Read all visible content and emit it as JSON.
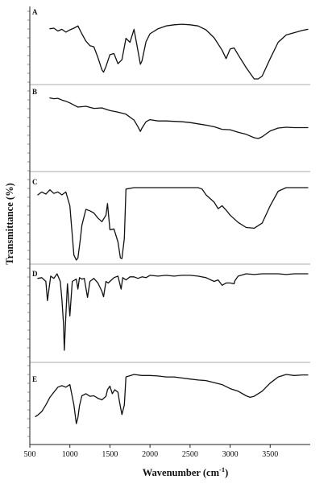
{
  "chart_data": {
    "type": "line",
    "title": "",
    "xlabel_base": "Wavenumber (cm",
    "xlabel_sup": "-1",
    "xlabel_end": ")",
    "ylabel": "Transmittance (%)",
    "xlim": [
      500,
      4000
    ],
    "xticks": [
      500,
      1000,
      1500,
      2000,
      2500,
      3000,
      3500
    ],
    "panel_order": [
      "A",
      "B",
      "C",
      "D",
      "E"
    ],
    "panels": {
      "A": {
        "label": "A",
        "points": [
          [
            750,
            0.11
          ],
          [
            800,
            0.1
          ],
          [
            850,
            0.15
          ],
          [
            900,
            0.12
          ],
          [
            950,
            0.17
          ],
          [
            1000,
            0.13
          ],
          [
            1050,
            0.1
          ],
          [
            1100,
            0.06
          ],
          [
            1150,
            0.2
          ],
          [
            1200,
            0.33
          ],
          [
            1250,
            0.41
          ],
          [
            1300,
            0.43
          ],
          [
            1350,
            0.62
          ],
          [
            1400,
            0.84
          ],
          [
            1420,
            0.88
          ],
          [
            1450,
            0.78
          ],
          [
            1500,
            0.57
          ],
          [
            1550,
            0.55
          ],
          [
            1600,
            0.73
          ],
          [
            1650,
            0.66
          ],
          [
            1700,
            0.28
          ],
          [
            1750,
            0.35
          ],
          [
            1800,
            0.12
          ],
          [
            1850,
            0.5
          ],
          [
            1880,
            0.74
          ],
          [
            1900,
            0.68
          ],
          [
            1950,
            0.34
          ],
          [
            2000,
            0.2
          ],
          [
            2100,
            0.11
          ],
          [
            2200,
            0.06
          ],
          [
            2300,
            0.04
          ],
          [
            2400,
            0.03
          ],
          [
            2500,
            0.04
          ],
          [
            2600,
            0.06
          ],
          [
            2700,
            0.13
          ],
          [
            2800,
            0.27
          ],
          [
            2900,
            0.49
          ],
          [
            2950,
            0.64
          ],
          [
            3000,
            0.47
          ],
          [
            3050,
            0.45
          ],
          [
            3100,
            0.57
          ],
          [
            3200,
            0.8
          ],
          [
            3300,
            1.0
          ],
          [
            3350,
            1.0
          ],
          [
            3400,
            0.95
          ],
          [
            3500,
            0.64
          ],
          [
            3600,
            0.35
          ],
          [
            3700,
            0.22
          ],
          [
            3800,
            0.18
          ],
          [
            3900,
            0.14
          ],
          [
            3970,
            0.12
          ]
        ]
      },
      "B": {
        "label": "B",
        "points": [
          [
            750,
            0.03
          ],
          [
            800,
            0.05
          ],
          [
            850,
            0.04
          ],
          [
            900,
            0.08
          ],
          [
            950,
            0.11
          ],
          [
            1000,
            0.15
          ],
          [
            1050,
            0.2
          ],
          [
            1100,
            0.25
          ],
          [
            1200,
            0.23
          ],
          [
            1300,
            0.28
          ],
          [
            1400,
            0.27
          ],
          [
            1500,
            0.33
          ],
          [
            1600,
            0.37
          ],
          [
            1700,
            0.42
          ],
          [
            1800,
            0.56
          ],
          [
            1850,
            0.72
          ],
          [
            1880,
            0.83
          ],
          [
            1900,
            0.75
          ],
          [
            1950,
            0.6
          ],
          [
            2000,
            0.55
          ],
          [
            2100,
            0.58
          ],
          [
            2200,
            0.58
          ],
          [
            2300,
            0.59
          ],
          [
            2400,
            0.6
          ],
          [
            2500,
            0.62
          ],
          [
            2600,
            0.65
          ],
          [
            2700,
            0.68
          ],
          [
            2800,
            0.72
          ],
          [
            2900,
            0.78
          ],
          [
            3000,
            0.79
          ],
          [
            3100,
            0.85
          ],
          [
            3200,
            0.9
          ],
          [
            3300,
            0.98
          ],
          [
            3350,
            1.0
          ],
          [
            3400,
            0.96
          ],
          [
            3500,
            0.82
          ],
          [
            3600,
            0.75
          ],
          [
            3700,
            0.73
          ],
          [
            3800,
            0.74
          ],
          [
            3900,
            0.74
          ],
          [
            3970,
            0.74
          ]
        ]
      },
      "C": {
        "label": "C",
        "points": [
          [
            600,
            0.1
          ],
          [
            650,
            0.06
          ],
          [
            700,
            0.09
          ],
          [
            750,
            0.03
          ],
          [
            800,
            0.08
          ],
          [
            850,
            0.06
          ],
          [
            900,
            0.1
          ],
          [
            950,
            0.06
          ],
          [
            1000,
            0.25
          ],
          [
            1050,
            0.93
          ],
          [
            1080,
            1.0
          ],
          [
            1100,
            0.97
          ],
          [
            1130,
            0.72
          ],
          [
            1150,
            0.52
          ],
          [
            1200,
            0.3
          ],
          [
            1250,
            0.32
          ],
          [
            1300,
            0.35
          ],
          [
            1350,
            0.42
          ],
          [
            1400,
            0.47
          ],
          [
            1450,
            0.38
          ],
          [
            1470,
            0.22
          ],
          [
            1500,
            0.58
          ],
          [
            1550,
            0.57
          ],
          [
            1600,
            0.75
          ],
          [
            1630,
            0.97
          ],
          [
            1650,
            0.98
          ],
          [
            1680,
            0.7
          ],
          [
            1700,
            0.02
          ],
          [
            1800,
            0.0
          ],
          [
            1900,
            0.0
          ],
          [
            2000,
            0.0
          ],
          [
            2100,
            0.0
          ],
          [
            2200,
            0.0
          ],
          [
            2300,
            0.0
          ],
          [
            2400,
            0.0
          ],
          [
            2500,
            0.0
          ],
          [
            2600,
            0.0
          ],
          [
            2650,
            0.02
          ],
          [
            2700,
            0.1
          ],
          [
            2800,
            0.2
          ],
          [
            2850,
            0.29
          ],
          [
            2900,
            0.25
          ],
          [
            2950,
            0.31
          ],
          [
            3000,
            0.38
          ],
          [
            3100,
            0.48
          ],
          [
            3200,
            0.55
          ],
          [
            3300,
            0.56
          ],
          [
            3400,
            0.49
          ],
          [
            3500,
            0.25
          ],
          [
            3600,
            0.05
          ],
          [
            3700,
            0.0
          ],
          [
            3800,
            0.0
          ],
          [
            3970,
            0.0
          ]
        ]
      },
      "D": {
        "label": "D",
        "points": [
          [
            600,
            0.06
          ],
          [
            650,
            0.05
          ],
          [
            700,
            0.1
          ],
          [
            720,
            0.35
          ],
          [
            760,
            0.03
          ],
          [
            800,
            0.06
          ],
          [
            840,
            0.0
          ],
          [
            880,
            0.1
          ],
          [
            900,
            0.33
          ],
          [
            920,
            0.65
          ],
          [
            930,
            1.0
          ],
          [
            950,
            0.55
          ],
          [
            970,
            0.13
          ],
          [
            1000,
            0.55
          ],
          [
            1030,
            0.1
          ],
          [
            1080,
            0.07
          ],
          [
            1100,
            0.2
          ],
          [
            1120,
            0.05
          ],
          [
            1150,
            0.07
          ],
          [
            1180,
            0.06
          ],
          [
            1220,
            0.31
          ],
          [
            1250,
            0.1
          ],
          [
            1300,
            0.06
          ],
          [
            1350,
            0.12
          ],
          [
            1400,
            0.23
          ],
          [
            1420,
            0.3
          ],
          [
            1450,
            0.1
          ],
          [
            1480,
            0.12
          ],
          [
            1520,
            0.08
          ],
          [
            1550,
            0.05
          ],
          [
            1600,
            0.03
          ],
          [
            1640,
            0.2
          ],
          [
            1660,
            0.05
          ],
          [
            1700,
            0.08
          ],
          [
            1750,
            0.04
          ],
          [
            1800,
            0.04
          ],
          [
            1850,
            0.06
          ],
          [
            1900,
            0.04
          ],
          [
            1950,
            0.05
          ],
          [
            2000,
            0.02
          ],
          [
            2100,
            0.03
          ],
          [
            2200,
            0.02
          ],
          [
            2300,
            0.03
          ],
          [
            2400,
            0.02
          ],
          [
            2500,
            0.02
          ],
          [
            2600,
            0.03
          ],
          [
            2700,
            0.05
          ],
          [
            2800,
            0.1
          ],
          [
            2850,
            0.08
          ],
          [
            2900,
            0.15
          ],
          [
            2950,
            0.12
          ],
          [
            3000,
            0.12
          ],
          [
            3050,
            0.13
          ],
          [
            3060,
            0.09
          ],
          [
            3100,
            0.03
          ],
          [
            3200,
            0.0
          ],
          [
            3300,
            0.01
          ],
          [
            3400,
            0.0
          ],
          [
            3500,
            0.0
          ],
          [
            3600,
            0.0
          ],
          [
            3700,
            0.01
          ],
          [
            3800,
            0.0
          ],
          [
            3970,
            0.0
          ]
        ]
      },
      "E": {
        "label": "E",
        "points": [
          [
            570,
            0.83
          ],
          [
            600,
            0.8
          ],
          [
            650,
            0.73
          ],
          [
            700,
            0.6
          ],
          [
            750,
            0.45
          ],
          [
            800,
            0.35
          ],
          [
            850,
            0.25
          ],
          [
            900,
            0.22
          ],
          [
            950,
            0.25
          ],
          [
            1000,
            0.2
          ],
          [
            1050,
            0.6
          ],
          [
            1080,
            0.97
          ],
          [
            1100,
            0.85
          ],
          [
            1120,
            0.62
          ],
          [
            1150,
            0.42
          ],
          [
            1200,
            0.38
          ],
          [
            1250,
            0.43
          ],
          [
            1300,
            0.42
          ],
          [
            1350,
            0.47
          ],
          [
            1400,
            0.5
          ],
          [
            1450,
            0.43
          ],
          [
            1470,
            0.3
          ],
          [
            1500,
            0.23
          ],
          [
            1530,
            0.38
          ],
          [
            1560,
            0.3
          ],
          [
            1600,
            0.35
          ],
          [
            1620,
            0.55
          ],
          [
            1650,
            0.79
          ],
          [
            1680,
            0.6
          ],
          [
            1700,
            0.05
          ],
          [
            1800,
            0.0
          ],
          [
            1900,
            0.02
          ],
          [
            2000,
            0.02
          ],
          [
            2100,
            0.03
          ],
          [
            2200,
            0.05
          ],
          [
            2300,
            0.05
          ],
          [
            2400,
            0.07
          ],
          [
            2500,
            0.09
          ],
          [
            2600,
            0.11
          ],
          [
            2700,
            0.12
          ],
          [
            2800,
            0.16
          ],
          [
            2900,
            0.2
          ],
          [
            3000,
            0.28
          ],
          [
            3100,
            0.33
          ],
          [
            3200,
            0.42
          ],
          [
            3250,
            0.45
          ],
          [
            3300,
            0.43
          ],
          [
            3400,
            0.33
          ],
          [
            3500,
            0.17
          ],
          [
            3600,
            0.05
          ],
          [
            3700,
            0.0
          ],
          [
            3800,
            0.02
          ],
          [
            3900,
            0.01
          ],
          [
            3970,
            0.01
          ]
        ]
      }
    }
  }
}
